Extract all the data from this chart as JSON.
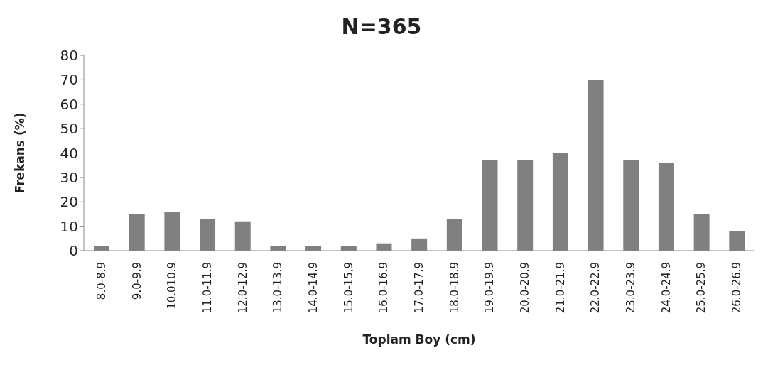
{
  "chart_data": {
    "type": "bar",
    "title": "N=365",
    "xlabel": "Toplam Boy (cm)",
    "ylabel": "Frekans (%)",
    "categories": [
      "8.0-8.9",
      "9.0-9.9",
      "10.010.9",
      "11.0-11.9",
      "12.0-12.9",
      "13.0-13.9",
      "14.0-14.9",
      "15.0-15,9",
      "16.0-16.9",
      "17.0-17.9",
      "18.0-18.9",
      "19.0-19.9",
      "20.0-20.9",
      "21.0-21.9",
      "22.0-22.9",
      "23.0-23.9",
      "24.0-24.9",
      "25.0-25.9",
      "26.0-26.9"
    ],
    "values": [
      2,
      15,
      16,
      13,
      12,
      2,
      2,
      2,
      3,
      5,
      13,
      37,
      37,
      40,
      70,
      37,
      36,
      15,
      8
    ],
    "color": "#808080",
    "ylim": [
      0,
      80
    ],
    "yticks": [
      0,
      10,
      20,
      30,
      40,
      50,
      60,
      70,
      80
    ],
    "grid": false,
    "legend": false
  }
}
